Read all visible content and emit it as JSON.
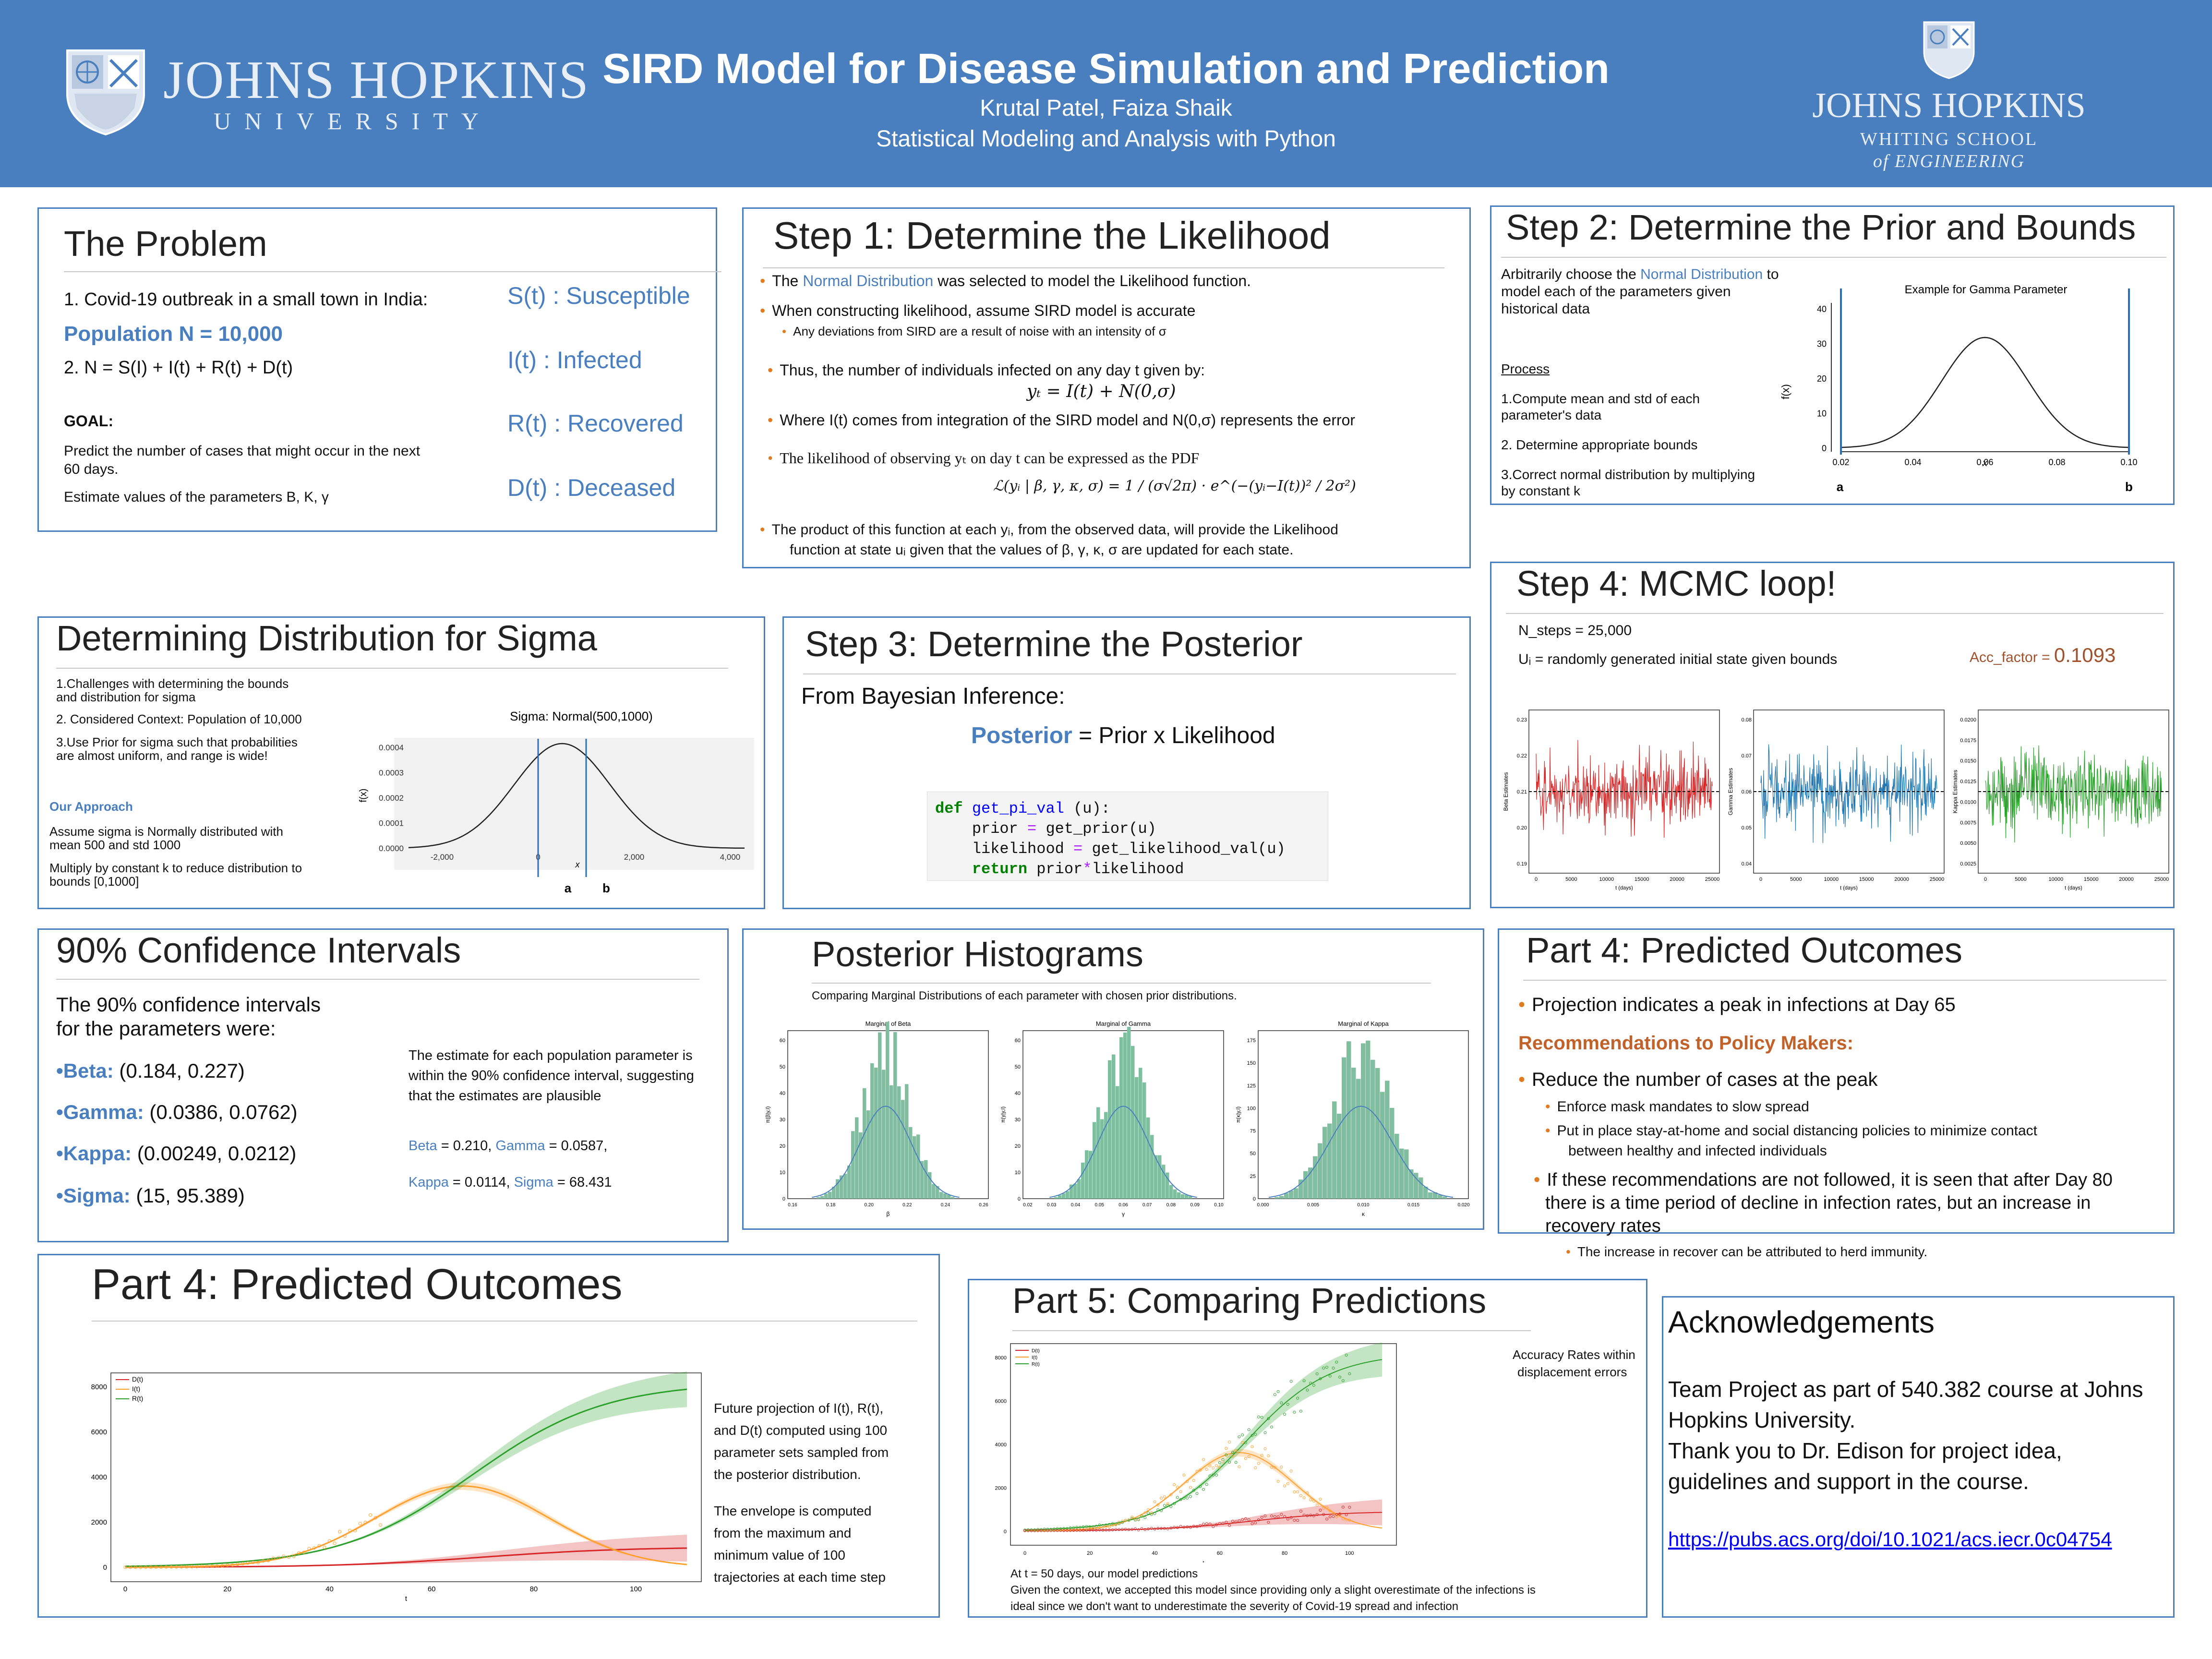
{
  "header": {
    "title": "SIRD Model for Disease Simulation and Prediction",
    "authors": "Krutal Patel, Faiza Shaik",
    "course": "Statistical Modeling and Analysis with Python",
    "left_logo": {
      "name": "JOHNS HOPKINS",
      "sub": "UNIVERSITY"
    },
    "right_logo": {
      "name": "JOHNS HOPKINS",
      "sub1": "WHITING SCHOOL",
      "sub2": "of ENGINEERING"
    }
  },
  "problem": {
    "title": "The Problem",
    "line1": "1. Covid-19 outbreak in a small town in India:",
    "population": "Population N = 10,000",
    "line2": "2. N = S(I) + I(t) + R(t) + D(t)",
    "goal_label": "GOAL",
    "goal_text1": "Predict the number of cases that might occur in the next",
    "goal_text2": "60 days.",
    "estimate": "Estimate values of the parameters B, K, γ",
    "states": [
      "S(t) : Susceptible",
      "I(t) : Infected",
      "R(t) : Recovered",
      "D(t) : Deceased"
    ]
  },
  "step1": {
    "title": "Step 1: Determine the Likelihood",
    "b1_pre": "The ",
    "b1_link": "Normal Distribution",
    "b1_post": " was selected to model the Likelihood function.",
    "b2": "When constructing likelihood, assume SIRD model is accurate",
    "b2_sub": "Any deviations from SIRD are a result of noise with an intensity of  σ",
    "b3": "Thus, the number of individuals infected on any day t given by:",
    "eq1": "yₜ = I(t) + N(0,σ)",
    "b4": "Where I(t) comes from integration of the SIRD model and N(0,σ) represents the error",
    "b5": "The likelihood of observing yₜ on day t can be expressed as the PDF",
    "eq2": "ℒ(yᵢ | β, γ, κ, σ) = 1 / (σ√2π) · e^(−(yᵢ−I(t))² / 2σ²)",
    "b6_1": "The product of this function at each yᵢ, from the observed data, will provide the Likelihood",
    "b6_2": "function at state uᵢ given that the values of β, γ, κ, σ are updated for each state."
  },
  "step2": {
    "title": "Step 2: Determine the Prior and Bounds",
    "intro1_pre": "Arbitrarily choose the ",
    "intro1_link": "Normal Distribution",
    "intro1_post": " to",
    "intro2": "model each of the parameters given",
    "intro3": "historical data",
    "process_label": "Process",
    "p1a": "1.Compute mean and std of each",
    "p1b": "parameter's data",
    "p2": "2. Determine appropriate bounds",
    "p3a": "3.Correct normal distribution by multiplying",
    "p3b": "by constant k",
    "chart_title": "Example for Gamma Parameter",
    "ylabel": "f(x)",
    "xlabel": "x",
    "yticks": [
      "0",
      "10",
      "20",
      "30",
      "40"
    ],
    "xticks": [
      "0.02",
      "0.04",
      "0.06",
      "0.08",
      "0.10"
    ],
    "a_label": "a",
    "b_label": "b"
  },
  "step4": {
    "title": "Step 4: MCMC loop!",
    "nsteps": "N_steps = 25,000",
    "ui": "Uᵢ = randomly generated initial state given bounds",
    "acc_label": "Acc_factor = ",
    "acc_value": "0.1093",
    "xlabel": "t (days)",
    "xticks": [
      "0",
      "5000",
      "10000",
      "15000",
      "20000",
      "25000"
    ],
    "traces": [
      {
        "ylabel": "Beta Estimates",
        "yticks": [
          "0.19",
          "0.20",
          "0.21",
          "0.22",
          "0.23"
        ],
        "color": "#d62728"
      },
      {
        "ylabel": "Gamma Estimates",
        "yticks": [
          "0.04",
          "0.05",
          "0.06",
          "0.07",
          "0.08"
        ],
        "color": "#1f77b4"
      },
      {
        "ylabel": "Kappa Estimates",
        "yticks": [
          "0.0025",
          "0.0050",
          "0.0075",
          "0.0100",
          "0.0125",
          "0.0150",
          "0.0175",
          "0.0200"
        ],
        "color": "#2ca02c"
      }
    ]
  },
  "sigma": {
    "title": "Determining Distribution for Sigma",
    "l1a": "1.Challenges with determining the bounds",
    "l1b": "and distribution for sigma",
    "l2": "2. Considered Context: Population of 10,000",
    "l3a": "3.Use Prior for sigma such that probabilities",
    "l3b": "are almost uniform, and range is wide!",
    "approach": "Our Approach",
    "a1a": "Assume sigma is Normally distributed with",
    "a1b": "mean 500 and std 1000",
    "a2a": "Multiply by constant k to reduce distribution to",
    "a2b": "bounds [0,1000]",
    "chart_title": "Sigma: Normal(500,1000)",
    "ylabel": "f(x)",
    "xlabel": "x",
    "yticks": [
      "0.0000",
      "0.0001",
      "0.0002",
      "0.0003",
      "0.0004"
    ],
    "xticks": [
      "-2,000",
      "0",
      "2,000",
      "4,000"
    ],
    "a_label": "a",
    "b_label": "b"
  },
  "step3": {
    "title": "Step 3: Determine the Posterior",
    "from": "From Bayesian Inference:",
    "posterior": "Posterior",
    "eq": " = Prior x Likelihood",
    "code": {
      "def": "def",
      "fname": "get_pi_val",
      "sig": " (u):",
      "l2a": "    prior ",
      "l2b": "=",
      "l2c": " get_prior(u)",
      "l3a": "    likelihood ",
      "l3b": "=",
      "l3c": " get_likelihood_val(u)",
      "l4a": "    ",
      "l4b": "return",
      "l4c": " prior",
      "l4d": "*",
      "l4e": "likelihood"
    }
  },
  "ci": {
    "title": "90% Confidence Intervals",
    "intro1": "The   90%   confidence   intervals",
    "intro2": "for the parameters were:",
    "items": [
      {
        "name": "•Beta:",
        "val": " (0.184, 0.227)"
      },
      {
        "name": "•Gamma:",
        "val": " (0.0386, 0.0762)"
      },
      {
        "name": "•Kappa:",
        "val": " (0.00249, 0.0212)"
      },
      {
        "name": "•Sigma:",
        "val": " (15, 95.389)"
      }
    ],
    "note1": "The estimate for each population parameter is",
    "note2": "within the 90% confidence interval, suggesting",
    "note3": "that the estimates are plausible",
    "est1_name": "Beta",
    "est1_val": " = 0.210,  ",
    "est2_name": "Gamma",
    "est2_val": " =  0.0587,",
    "est3_name": "Kappa",
    "est3_val": " = 0.0114, ",
    "est4_name": "Sigma",
    "est4_val": " = 68.431"
  },
  "hist": {
    "title": "Posterior Histograms",
    "sub": "Comparing Marginal Distributions of each parameter with chosen prior distributions.",
    "panels": [
      {
        "title": "Marginal of Beta",
        "xlabel": "β",
        "ylabel": "π(β|y,I)",
        "yticks": [
          "0",
          "10",
          "20",
          "30",
          "40",
          "50",
          "60"
        ],
        "xticks": [
          "0.16",
          "0.18",
          "0.20",
          "0.22",
          "0.24",
          "0.26"
        ]
      },
      {
        "title": "Marginal of Gamma",
        "xlabel": "γ",
        "ylabel": "π(γ|y,I)",
        "yticks": [
          "0",
          "10",
          "20",
          "30",
          "40",
          "50",
          "60"
        ],
        "xticks": [
          "0.02",
          "0.03",
          "0.04",
          "0.05",
          "0.06",
          "0.07",
          "0.08",
          "0.09",
          "0.10"
        ]
      },
      {
        "title": "Marginal of Kappa",
        "xlabel": "κ",
        "ylabel": "π(κ|y,I)",
        "yticks": [
          "0",
          "25",
          "50",
          "75",
          "100",
          "125",
          "150",
          "175"
        ],
        "xticks": [
          "0.000",
          "0.005",
          "0.010",
          "0.015",
          "0.020"
        ]
      }
    ],
    "color": "#7fbf9f"
  },
  "part4a": {
    "title": "Part 4: Predicted Outcomes",
    "b1": "Projection indicates a peak  in infections at Day 65",
    "rec": "Recommendations to Policy Makers:",
    "b2": "Reduce the number of cases at the peak",
    "s1": "Enforce mask mandates to slow spread",
    "s2a": "Put in place stay-at-home and social distancing policies to minimize contact",
    "s2b": "between healthy and infected individuals",
    "b3a": "If these recommendations are not followed, it is seen that after Day 80",
    "b3b": "there is a time period of decline in infection rates, but an increase in",
    "b3c": "recovery rates",
    "s3": "The increase in recover can be attributed to herd immunity."
  },
  "part4b": {
    "title": "Part 4: Predicted Outcomes",
    "legend": [
      "D(t)",
      "I(t)",
      "R(t)"
    ],
    "xlabel": "t",
    "xticks": [
      "0",
      "20",
      "40",
      "60",
      "80",
      "100"
    ],
    "yticks": [
      "0",
      "2000",
      "4000",
      "6000",
      "8000"
    ],
    "text1": [
      "Future projection of I(t), R(t),",
      "and D(t) computed using 100",
      "parameter sets sampled from",
      "the posterior distribution."
    ],
    "text2": [
      "The envelope is computed",
      "from the maximum and",
      "minimum value of 100",
      "trajectories  at each time step"
    ],
    "colors": {
      "D": "#d62728",
      "I": "#ff9f2e",
      "R": "#2ca02c"
    }
  },
  "part5": {
    "title": "Part 5: Comparing Predictions",
    "acc1": "Accuracy Rates within",
    "acc2": "displacement errors",
    "legend": [
      "D(t)",
      "I(t)",
      "R(t)"
    ],
    "xlabel": "t",
    "xticks": [
      "0",
      "20",
      "40",
      "60",
      "80",
      "100"
    ],
    "yticks": [
      "0",
      "2000",
      "4000",
      "6000",
      "8000"
    ],
    "c1": "At t = 50 days, our model predictions",
    "c2": "Given the context, we accepted this model since providing only a slight overestimate of the infections is",
    "c3": "ideal since we don't want to underestimate the severity of Covid-19 spread and infection"
  },
  "ack": {
    "title": "Acknowledgements",
    "t1": "Team Project as part of 540.382 course at Johns",
    "t2": "Hopkins University.",
    "t3": "Thank you to Dr. Edison for project idea,",
    "t4": "guidelines and support in the course.",
    "link": "https://pubs.acs.org/doi/10.1021/acs.iecr.0c04754"
  }
}
